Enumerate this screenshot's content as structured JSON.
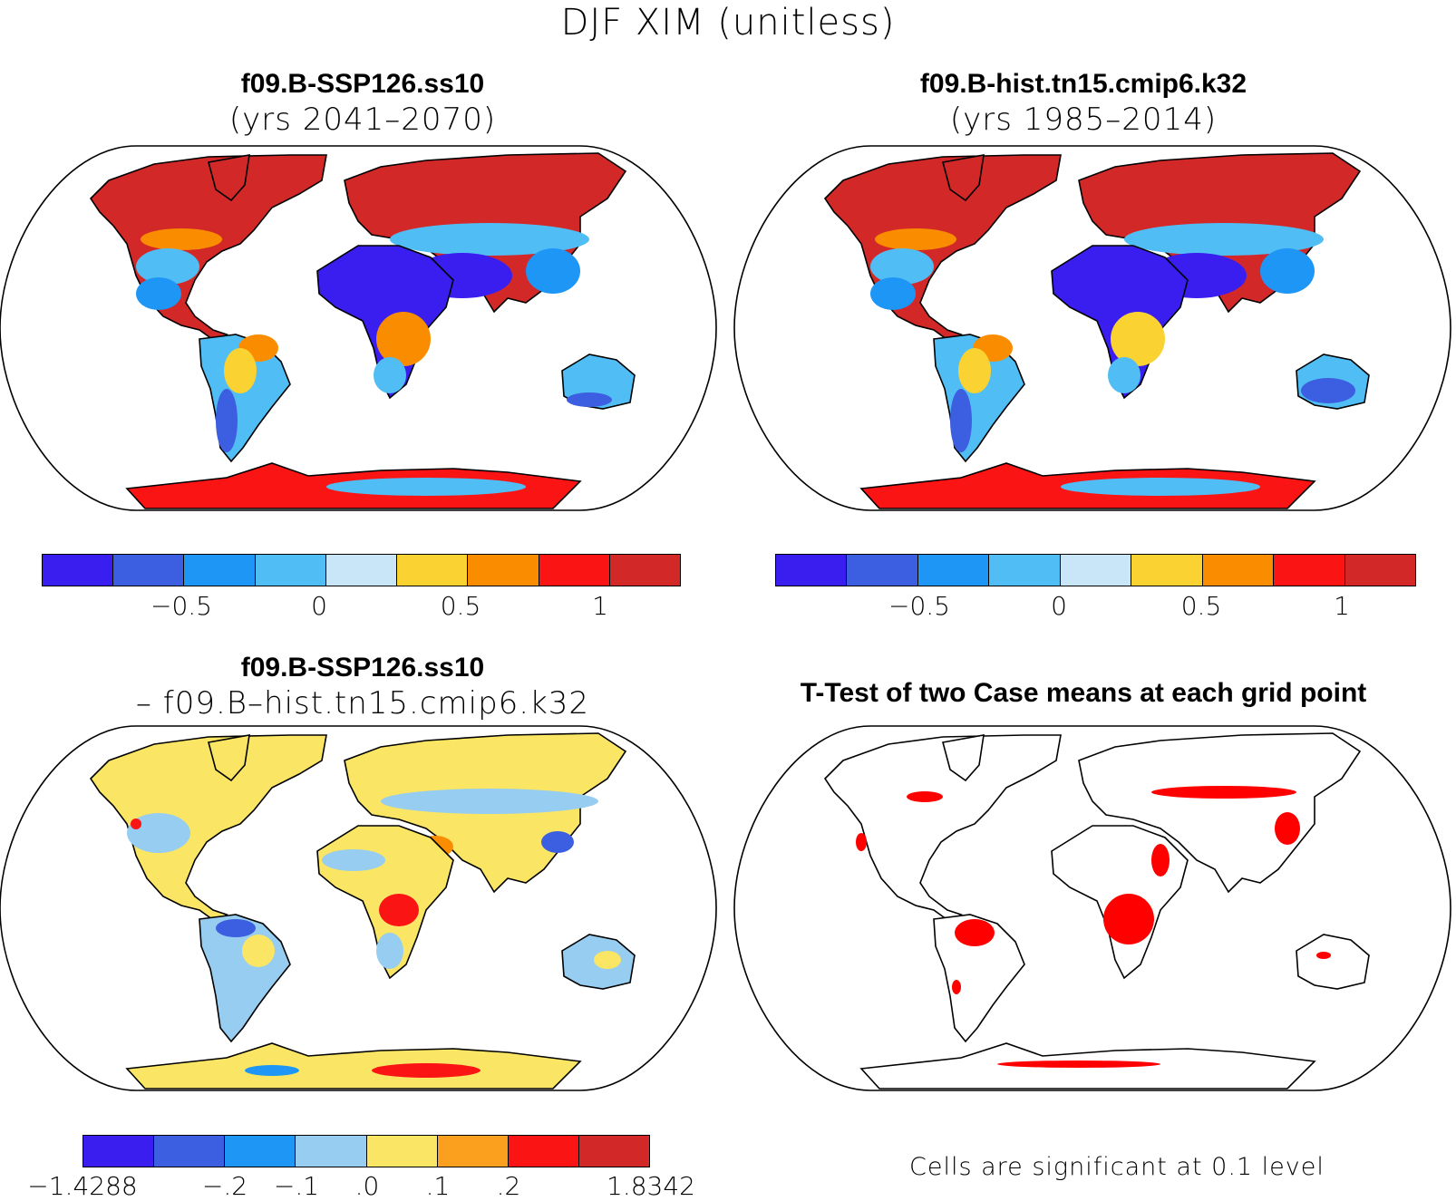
{
  "figure": {
    "title": "DJF XIM (unitless)"
  },
  "panels": {
    "p1": {
      "title": "f09.B-SSP126.ss10",
      "subtitle": "(yrs 2041–2070)"
    },
    "p2": {
      "title": "f09.B-hist.tn15.cmip6.k32",
      "subtitle": "(yrs 1985–2014)"
    },
    "p3": {
      "title": "f09.B-SSP126.ss10",
      "subtitle": "– f09.B–hist.tn15.cmip6.k32"
    },
    "p4": {
      "title": "T-Test of two Case means at each grid point",
      "note": "Cells are significant at 0.1 level"
    }
  },
  "colorbars": {
    "top": {
      "colors": [
        "#3a1ef0",
        "#3c5ee0",
        "#1e96f5",
        "#50bef5",
        "#c8e6f8",
        "#fad232",
        "#fa8c00",
        "#fa1414",
        "#d22828"
      ],
      "labels": [
        "−0.5",
        "0",
        "0.5",
        "1"
      ]
    },
    "diff": {
      "colors": [
        "#3a1ef0",
        "#3c5ee0",
        "#1e96f5",
        "#96cdf0",
        "#fae664",
        "#faa01e",
        "#fa1414",
        "#d22828"
      ],
      "labels": [
        "−1.4288",
        "−.2",
        "−.1",
        ".0",
        ".1",
        ".2",
        "1.8342"
      ]
    }
  },
  "map_colors": {
    "warm": "#d22828",
    "red": "#fa1414",
    "orange": "#fa8c00",
    "yellow": "#fad232",
    "lightblue": "#50bef5",
    "blue": "#1e96f5",
    "midblue": "#3c5ee0",
    "deepblue": "#3a1ef0",
    "diffyellow": "#fae664",
    "diffblue": "#96cdf0",
    "signif": "#ff0000"
  }
}
